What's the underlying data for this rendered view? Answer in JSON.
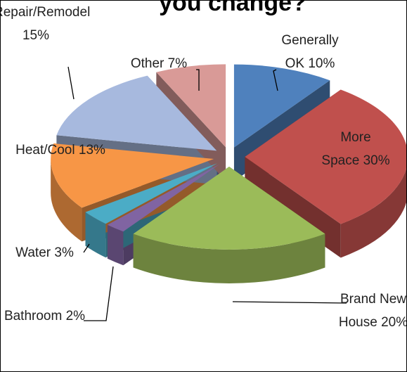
{
  "chart_data": {
    "type": "pie",
    "title": "you change?",
    "categories": [
      "Generally OK",
      "More Space",
      "Brand New House",
      "Bathroom",
      "Water",
      "Heat/Cool",
      "Repair/Remodel",
      "Other"
    ],
    "values": [
      10,
      30,
      20,
      2,
      3,
      13,
      15,
      7
    ],
    "value_labels": [
      "10%",
      "30%",
      "20%",
      "2%",
      "3%",
      "13%",
      "15%",
      "7%"
    ],
    "colors": [
      "#4f81bd",
      "#c0504d",
      "#9bbb59",
      "#8064a2",
      "#4bacc6",
      "#f79646",
      "#a7b9de",
      "#d99a97"
    ]
  }
}
